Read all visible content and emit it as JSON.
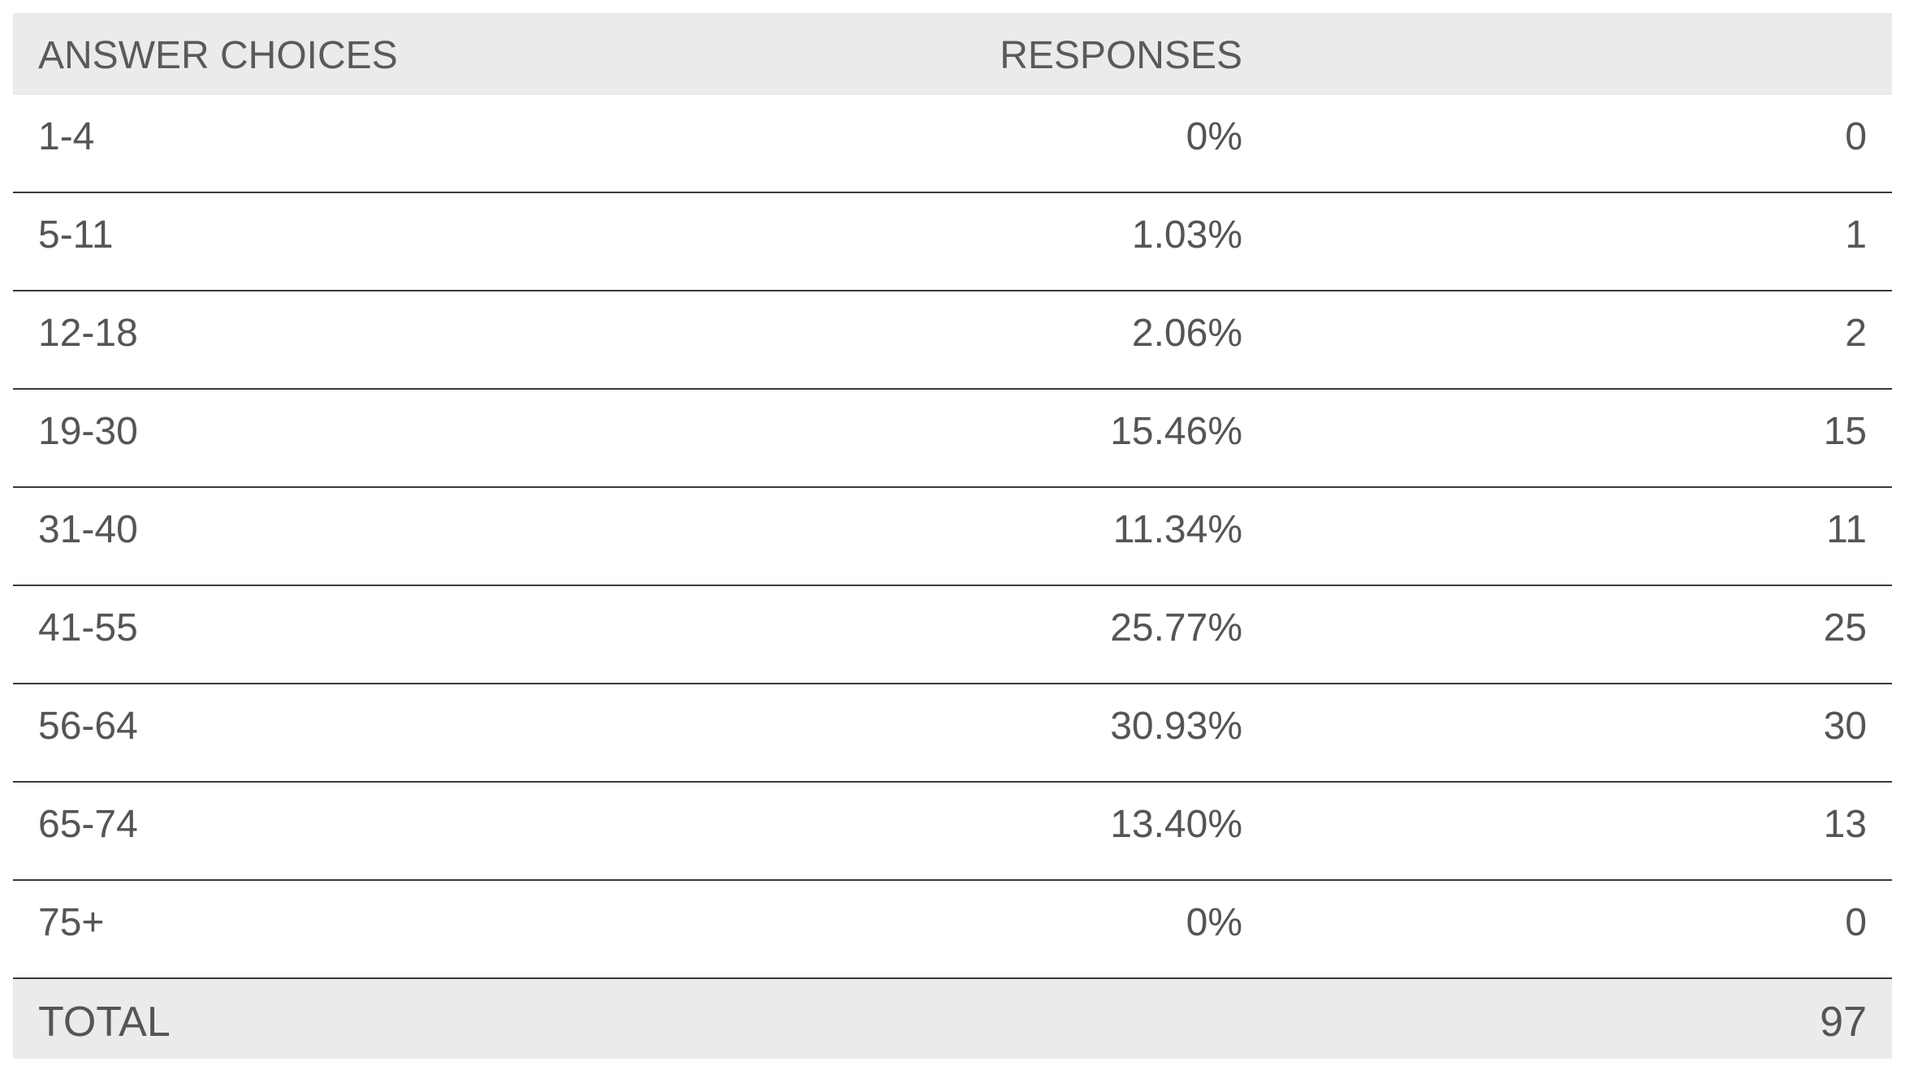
{
  "chart_data": {
    "type": "table",
    "columns": [
      "ANSWER CHOICES",
      "RESPONSES"
    ],
    "rows": [
      {
        "choice": "1-4",
        "percent": "0%",
        "count": "0"
      },
      {
        "choice": "5-11",
        "percent": "1.03%",
        "count": "1"
      },
      {
        "choice": "12-18",
        "percent": "2.06%",
        "count": "2"
      },
      {
        "choice": "19-30",
        "percent": "15.46%",
        "count": "15"
      },
      {
        "choice": "31-40",
        "percent": "11.34%",
        "count": "11"
      },
      {
        "choice": "41-55",
        "percent": "25.77%",
        "count": "25"
      },
      {
        "choice": "56-64",
        "percent": "30.93%",
        "count": "30"
      },
      {
        "choice": "65-74",
        "percent": "13.40%",
        "count": "13"
      },
      {
        "choice": "75+",
        "percent": "0%",
        "count": "0"
      }
    ],
    "total_label": "TOTAL",
    "total_value": "97"
  },
  "colors": {
    "header_bg": "#ebebeb",
    "text": "#555555",
    "divider": "#3a3a3a"
  }
}
